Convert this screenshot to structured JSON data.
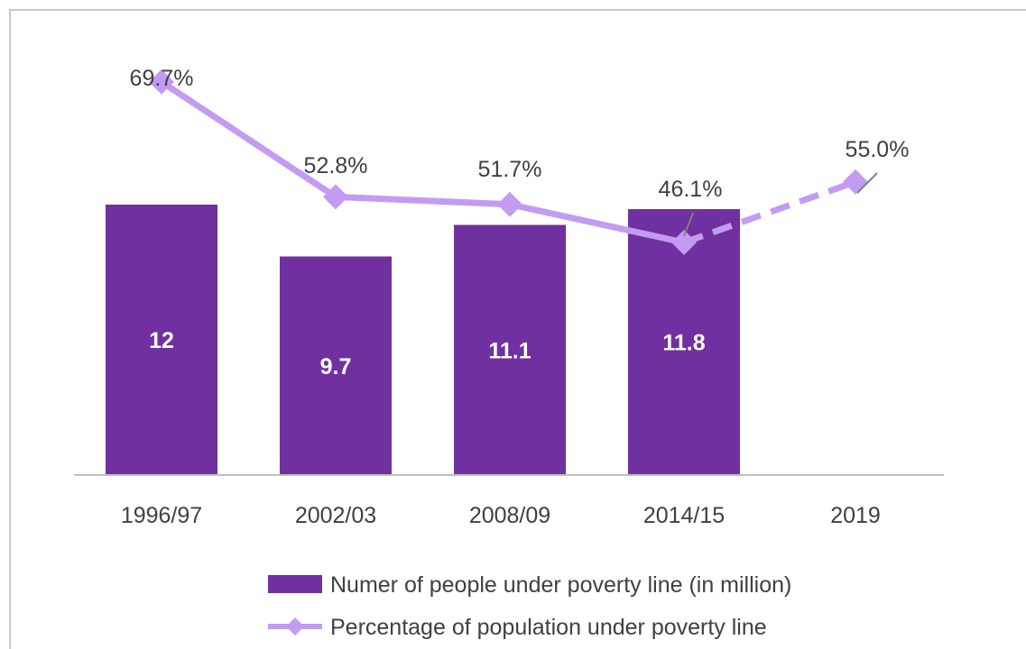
{
  "chart_data": {
    "type": "bar",
    "categories": [
      "1996/97",
      "2002/03",
      "2008/09",
      "2014/15",
      "2019"
    ],
    "series": [
      {
        "name": "Numer of people under poverty line (in million)",
        "kind": "bar",
        "values": [
          12,
          9.7,
          11.1,
          11.8,
          null
        ],
        "labels": [
          "12",
          "9.7",
          "11.1",
          "11.8",
          ""
        ]
      },
      {
        "name": "Percentage of population under poverty line",
        "kind": "line",
        "values": [
          69.7,
          52.8,
          51.7,
          46.1,
          55.0
        ],
        "labels": [
          "69.7%",
          "52.8%",
          "51.7%",
          "46.1%",
          "55.0%"
        ],
        "dashed_segment": [
          "2014/15",
          "2019"
        ]
      }
    ],
    "title": "",
    "xlabel": "",
    "ylabel": "",
    "legend_position": "bottom",
    "grid": false,
    "colors": {
      "bar": "#7030a0",
      "line": "#c39bf2",
      "axis": "#bfbfbf",
      "text": "#404040",
      "leader": "#808080"
    }
  }
}
